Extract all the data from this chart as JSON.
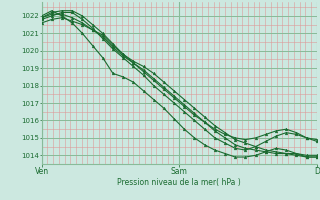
{
  "bg_color": "#cce8e0",
  "plot_bg_color": "#cce8e0",
  "grid_color_major": "#88bb99",
  "grid_color_minor": "#bbddcc",
  "grid_color_red": "#dd9999",
  "line_color": "#1a6b30",
  "marker_color": "#1a6b30",
  "ylabel_range": [
    1013.5,
    1022.8
  ],
  "yticks": [
    1014,
    1015,
    1016,
    1017,
    1018,
    1019,
    1020,
    1021,
    1022
  ],
  "xlabel": "Pression niveau de la mer( hPa )",
  "xtick_labels": [
    "Ven",
    "Sam",
    "D"
  ],
  "xtick_positions": [
    0.0,
    0.5,
    1.0
  ],
  "n_minor_v": 48,
  "series": [
    [
      1021.6,
      1021.8,
      1021.9,
      1021.7,
      1021.5,
      1021.2,
      1020.9,
      1020.3,
      1019.8,
      1019.4,
      1019.1,
      1018.7,
      1018.2,
      1017.7,
      1017.2,
      1016.7,
      1016.2,
      1015.7,
      1015.3,
      1014.9,
      1014.7,
      1014.5,
      1014.3,
      1014.2,
      1014.1,
      1014.0,
      1013.9,
      1013.9
    ],
    [
      1021.9,
      1022.1,
      1022.1,
      1021.9,
      1021.6,
      1021.2,
      1020.8,
      1020.2,
      1019.7,
      1019.3,
      1018.9,
      1018.4,
      1017.9,
      1017.4,
      1016.9,
      1016.4,
      1015.9,
      1015.4,
      1015.0,
      1014.6,
      1014.4,
      1014.3,
      1014.2,
      1014.1,
      1014.1,
      1014.1,
      1014.0,
      1014.0
    ],
    [
      1021.8,
      1022.0,
      1022.2,
      1022.2,
      1021.8,
      1021.3,
      1020.7,
      1020.1,
      1019.6,
      1019.1,
      1018.6,
      1018.0,
      1017.5,
      1017.0,
      1016.5,
      1016.0,
      1015.5,
      1015.0,
      1014.7,
      1014.4,
      1014.3,
      1014.5,
      1014.8,
      1015.1,
      1015.3,
      1015.2,
      1015.0,
      1014.9
    ],
    [
      1021.9,
      1022.2,
      1022.3,
      1022.3,
      1022.0,
      1021.5,
      1021.0,
      1020.4,
      1019.8,
      1019.3,
      1018.8,
      1018.3,
      1017.8,
      1017.3,
      1016.8,
      1016.3,
      1015.9,
      1015.5,
      1015.2,
      1015.0,
      1014.9,
      1015.0,
      1015.2,
      1015.4,
      1015.5,
      1015.3,
      1015.0,
      1014.8
    ],
    [
      1022.0,
      1022.3,
      1022.0,
      1021.6,
      1021.0,
      1020.3,
      1019.6,
      1018.7,
      1018.5,
      1018.2,
      1017.7,
      1017.2,
      1016.7,
      1016.1,
      1015.5,
      1015.0,
      1014.6,
      1014.3,
      1014.1,
      1013.9,
      1013.9,
      1014.0,
      1014.2,
      1014.4,
      1014.3,
      1014.1,
      1013.9,
      1013.9
    ]
  ]
}
